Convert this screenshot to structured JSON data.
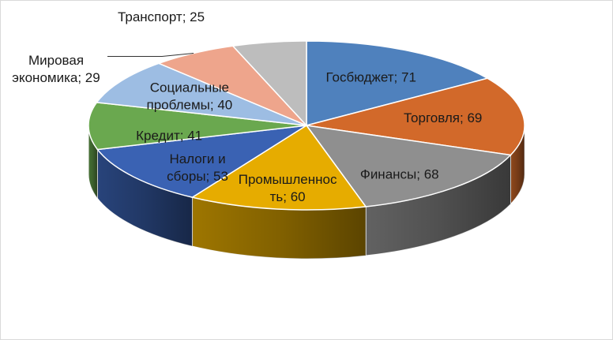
{
  "chart_data": {
    "type": "pie",
    "style": "3d",
    "start_angle_deg": 0,
    "direction": "clockwise",
    "slices": [
      {
        "label": "Госбюджет",
        "value": 71,
        "display_label": [
          "Госбюджет; 71"
        ],
        "color": "#4f81bd"
      },
      {
        "label": "Торговля",
        "value": 69,
        "display_label": [
          "Торговля; 69"
        ],
        "color": "#d2692a"
      },
      {
        "label": "Финансы",
        "value": 68,
        "display_label": [
          "Финансы; 68"
        ],
        "color": "#8f8f8f"
      },
      {
        "label": "Промышленность",
        "value": 60,
        "display_label": [
          "Промышленнос",
          "ть; 60"
        ],
        "color": "#e6ac00"
      },
      {
        "label": "Налоги и сборы",
        "value": 53,
        "display_label": [
          "Налоги и",
          "сборы; 53"
        ],
        "color": "#3a62b3"
      },
      {
        "label": "Кредит",
        "value": 41,
        "display_label": [
          "Кредит; 41"
        ],
        "color": "#6aa84f"
      },
      {
        "label": "Социальные проблемы",
        "value": 40,
        "display_label": [
          "Социальные",
          "проблемы; 40"
        ],
        "color": "#9dbde3"
      },
      {
        "label": "Мировая экономика",
        "value": 29,
        "display_label": [
          "Мировая",
          "экономика; 29"
        ],
        "color": "#eea58c"
      },
      {
        "label": "Транспорт",
        "value": 25,
        "display_label": [
          "Транспорт; 25"
        ],
        "color": "#bdbdbd"
      }
    ]
  }
}
